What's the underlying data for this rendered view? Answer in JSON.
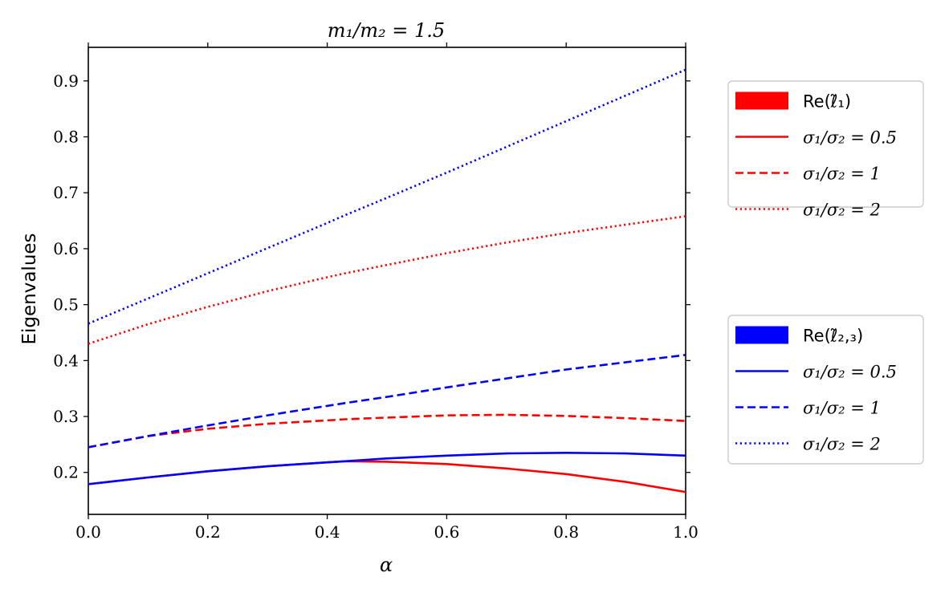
{
  "chart_data": {
    "type": "line",
    "title": "m₁/m₂ = 1.5",
    "xlabel": "α",
    "ylabel": "Eigenvalues",
    "xlim": [
      0.0,
      1.0
    ],
    "ylim": [
      0.125,
      0.96
    ],
    "xticks": [
      "0.0",
      "0.2",
      "0.4",
      "0.6",
      "0.8",
      "1.0"
    ],
    "yticks": [
      "0.2",
      "0.3",
      "0.4",
      "0.5",
      "0.6",
      "0.7",
      "0.8",
      "0.9"
    ],
    "grid": false,
    "legends": [
      {
        "placement": "right-upper",
        "header": "Re(ℓ̃₁)",
        "color": "#ff0000",
        "entries": [
          {
            "label": "σ₁/σ₂ = 0.5",
            "dash": "solid"
          },
          {
            "label": "σ₁/σ₂ = 1",
            "dash": "dashed"
          },
          {
            "label": "σ₁/σ₂ = 2",
            "dash": "dotted"
          }
        ]
      },
      {
        "placement": "right-lower",
        "header": "Re(ℓ̃₂,₃)",
        "color": "#0000ff",
        "entries": [
          {
            "label": "σ₁/σ₂ = 0.5",
            "dash": "solid"
          },
          {
            "label": "σ₁/σ₂ = 1",
            "dash": "dashed"
          },
          {
            "label": "σ₁/σ₂ = 2",
            "dash": "dotted"
          }
        ]
      }
    ],
    "x": [
      0.0,
      0.1,
      0.2,
      0.3,
      0.4,
      0.43,
      0.5,
      0.6,
      0.7,
      0.8,
      0.9,
      1.0
    ],
    "series": [
      {
        "group": "Re(ℓ̃₁)",
        "ratio": "0.5",
        "color": "#ff0000",
        "dash": "solid",
        "values": [
          0.179,
          0.191,
          0.202,
          0.211,
          0.218,
          0.22,
          0.219,
          0.215,
          0.207,
          0.197,
          0.183,
          0.165
        ]
      },
      {
        "group": "Re(ℓ̃₁)",
        "ratio": "1",
        "color": "#ff0000",
        "dash": "dashed",
        "values": [
          0.245,
          0.265,
          0.278,
          0.287,
          0.293,
          0.295,
          0.298,
          0.302,
          0.303,
          0.301,
          0.297,
          0.292
        ]
      },
      {
        "group": "Re(ℓ̃₁)",
        "ratio": "2",
        "color": "#ff0000",
        "dash": "dotted",
        "values": [
          0.43,
          0.465,
          0.496,
          0.524,
          0.549,
          0.556,
          0.571,
          0.592,
          0.611,
          0.628,
          0.643,
          0.658
        ]
      },
      {
        "group": "Re(ℓ̃₂,₃)",
        "ratio": "0.5",
        "color": "#0000ff",
        "dash": "solid",
        "values": [
          0.179,
          0.191,
          0.202,
          0.211,
          0.218,
          0.22,
          0.225,
          0.23,
          0.234,
          0.235,
          0.234,
          0.23
        ]
      },
      {
        "group": "Re(ℓ̃₂,₃)",
        "ratio": "1",
        "color": "#0000ff",
        "dash": "dashed",
        "values": [
          0.245,
          0.265,
          0.284,
          0.302,
          0.319,
          0.324,
          0.335,
          0.352,
          0.368,
          0.384,
          0.397,
          0.41
        ]
      },
      {
        "group": "Re(ℓ̃₂,₃)",
        "ratio": "2",
        "color": "#0000ff",
        "dash": "dotted",
        "values": [
          0.466,
          0.511,
          0.556,
          0.601,
          0.646,
          0.66,
          0.691,
          0.736,
          0.782,
          0.828,
          0.874,
          0.92
        ]
      }
    ]
  }
}
